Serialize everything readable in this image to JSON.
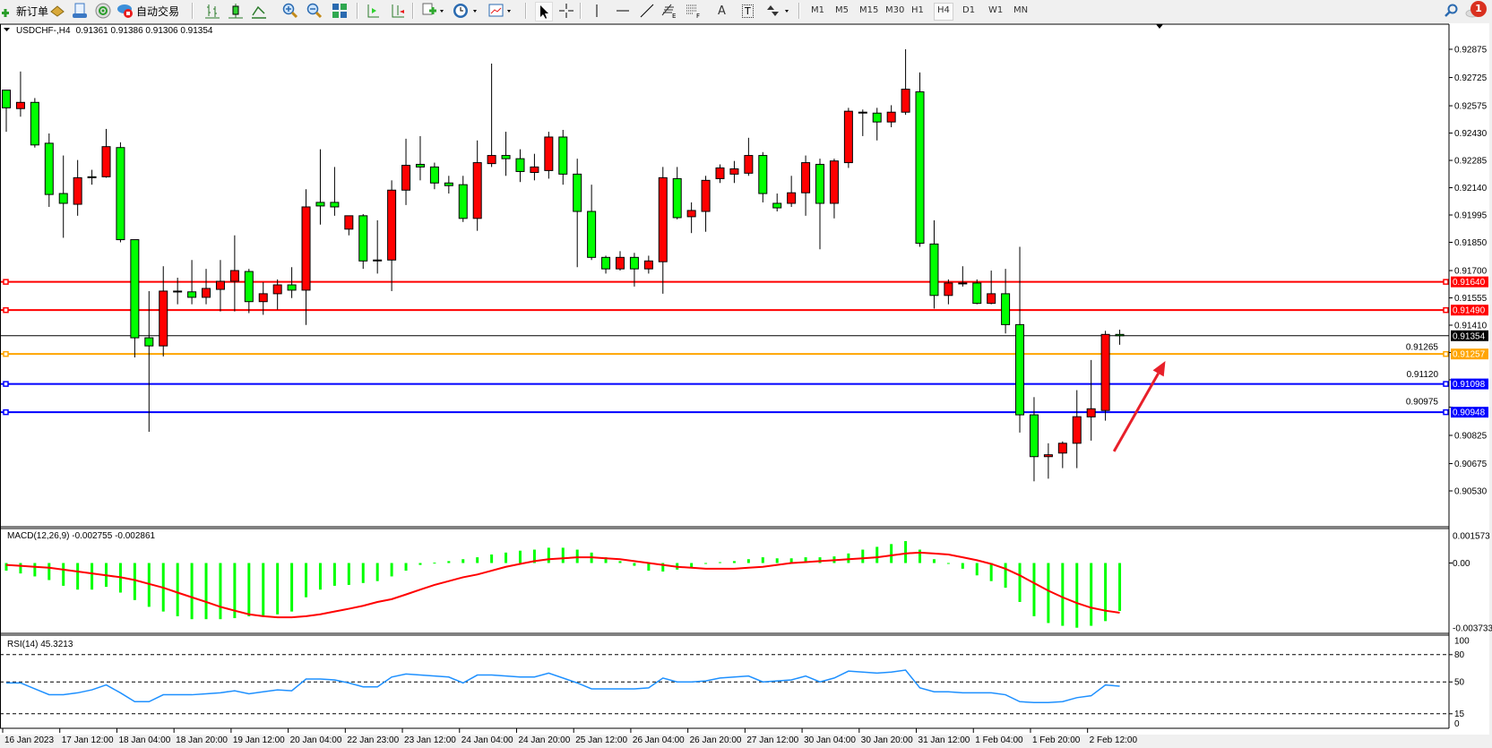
{
  "toolbar": {
    "new_order": {
      "label": "新订单",
      "icon": "new-order-icon"
    },
    "autotrading": {
      "label": "自动交易",
      "icon": "autotrading-icon"
    },
    "icons": [
      "market-watch-icon",
      "navigator-icon",
      "signals-icon",
      "bar-chart-icon",
      "candlestick-icon",
      "line-chart-icon",
      "zoom-in-icon",
      "zoom-out-icon",
      "tile-windows-icon",
      "auto-scroll-icon",
      "chart-shift-icon",
      "indicators-icon",
      "periodicity-icon",
      "templates-icon",
      "cursor-icon",
      "crosshair-icon",
      "vertical-line-icon",
      "horizontal-line-icon",
      "trendline-icon",
      "fibonacci-icon",
      "fibo-fan-icon",
      "text-icon",
      "text-label-icon",
      "arrows-icon"
    ],
    "fibo_e_letter": "E",
    "fibo_f_letter": "F",
    "text_letter": "A",
    "label_letter": "T",
    "timeframes": [
      "M1",
      "M5",
      "M15",
      "M30",
      "H1",
      "H4",
      "D1",
      "W1",
      "MN"
    ],
    "active_timeframe": "H4",
    "notification_count": "1"
  },
  "chart": {
    "symbol_header": "USDCHF-,H4",
    "ohlc_header": "0.91361 0.91386 0.91306 0.91354",
    "colors": {
      "bull": "#ff0000",
      "bear": "#00ff00",
      "wick": "#000000",
      "arrow": "#e8202a"
    },
    "price_axis": [
      "0.92875",
      "0.92725",
      "0.92575",
      "0.92430",
      "0.92285",
      "0.92140",
      "0.91995",
      "0.91850",
      "0.91700",
      "0.91555",
      "0.91410",
      "0.91265",
      "0.91120",
      "0.90975",
      "0.90825",
      "0.90675",
      "0.90530"
    ],
    "hlines": [
      {
        "price": "0.91640",
        "color": "#ff0000"
      },
      {
        "price": "0.91490",
        "color": "#ff0000"
      },
      {
        "price": "0.91354",
        "color": "#000000"
      },
      {
        "price": "0.91257",
        "color": "#ffa500"
      },
      {
        "price": "0.91098",
        "color": "#0000ff"
      },
      {
        "price": "0.90948",
        "color": "#0000ff"
      }
    ],
    "arrow": {
      "from_price": 0.9074,
      "to_price": 0.9122,
      "direction": "up"
    },
    "candles": [
      [
        0.92658,
        0.92658,
        0.92437,
        0.92564
      ],
      [
        0.9256,
        0.92757,
        0.92517,
        0.92593
      ],
      [
        0.92593,
        0.92616,
        0.92353,
        0.92367
      ],
      [
        0.92376,
        0.92428,
        0.92038,
        0.92104
      ],
      [
        0.92109,
        0.92311,
        0.91874,
        0.92057
      ],
      [
        0.92052,
        0.92287,
        0.91991,
        0.92193
      ],
      [
        0.92198,
        0.92235,
        0.92156,
        0.92193
      ],
      [
        0.92198,
        0.92452,
        0.92193,
        0.92358
      ],
      [
        0.92353,
        0.92381,
        0.9185,
        0.91864
      ],
      [
        0.91864,
        0.91864,
        0.91239,
        0.91343
      ],
      [
        0.91343,
        0.91591,
        0.90844,
        0.913
      ],
      [
        0.913,
        0.91723,
        0.91244,
        0.91591
      ],
      [
        0.91591,
        0.91662,
        0.91521,
        0.91587
      ],
      [
        0.91587,
        0.91756,
        0.91521,
        0.91558
      ],
      [
        0.91558,
        0.91709,
        0.91521,
        0.91605
      ],
      [
        0.916,
        0.91756,
        0.91483,
        0.91643
      ],
      [
        0.91643,
        0.91887,
        0.91483,
        0.917
      ],
      [
        0.91695,
        0.91709,
        0.91474,
        0.91535
      ],
      [
        0.91535,
        0.91638,
        0.91465,
        0.91577
      ],
      [
        0.91577,
        0.91653,
        0.91493,
        0.91624
      ],
      [
        0.91624,
        0.91718,
        0.91554,
        0.91596
      ],
      [
        0.91596,
        0.92132,
        0.91411,
        0.92038
      ],
      [
        0.92062,
        0.92344,
        0.91944,
        0.92043
      ],
      [
        0.92062,
        0.9225,
        0.91991,
        0.92038
      ],
      [
        0.9192,
        0.91991,
        0.91887,
        0.91991
      ],
      [
        0.91991,
        0.92,
        0.91709,
        0.91751
      ],
      [
        0.91756,
        0.91967,
        0.91684,
        0.91756
      ],
      [
        0.91756,
        0.92179,
        0.91591,
        0.92127
      ],
      [
        0.92127,
        0.924,
        0.92048,
        0.92259
      ],
      [
        0.92264,
        0.92414,
        0.92179,
        0.9225
      ],
      [
        0.9225,
        0.92273,
        0.92132,
        0.92165
      ],
      [
        0.92165,
        0.92203,
        0.92109,
        0.92151
      ],
      [
        0.92156,
        0.92203,
        0.91958,
        0.91977
      ],
      [
        0.91977,
        0.92391,
        0.91911,
        0.92273
      ],
      [
        0.92268,
        0.92799,
        0.9225,
        0.92311
      ],
      [
        0.92311,
        0.92437,
        0.92203,
        0.92294
      ],
      [
        0.92294,
        0.92344,
        0.9217,
        0.92226
      ],
      [
        0.92221,
        0.9232,
        0.92179,
        0.9225
      ],
      [
        0.92231,
        0.92437,
        0.92188,
        0.92409
      ],
      [
        0.92409,
        0.92447,
        0.92156,
        0.92212
      ],
      [
        0.92212,
        0.92294,
        0.91718,
        0.92014
      ],
      [
        0.92014,
        0.92156,
        0.91756,
        0.9177
      ],
      [
        0.9177,
        0.91779,
        0.91684,
        0.91709
      ],
      [
        0.91709,
        0.91803,
        0.917,
        0.9177
      ],
      [
        0.9177,
        0.91794,
        0.91615,
        0.91709
      ],
      [
        0.91709,
        0.91779,
        0.91684,
        0.91751
      ],
      [
        0.91747,
        0.9225,
        0.91577,
        0.92193
      ],
      [
        0.92188,
        0.9225,
        0.91972,
        0.91981
      ],
      [
        0.91986,
        0.92062,
        0.91899,
        0.92019
      ],
      [
        0.92014,
        0.92203,
        0.91906,
        0.92179
      ],
      [
        0.92188,
        0.92264,
        0.92165,
        0.92245
      ],
      [
        0.92212,
        0.92282,
        0.92165,
        0.9224
      ],
      [
        0.92217,
        0.92405,
        0.92203,
        0.92311
      ],
      [
        0.92311,
        0.92329,
        0.92062,
        0.92109
      ],
      [
        0.92057,
        0.92109,
        0.92014,
        0.92033
      ],
      [
        0.92057,
        0.92203,
        0.92038,
        0.92113
      ],
      [
        0.92113,
        0.92311,
        0.91991,
        0.92273
      ],
      [
        0.92264,
        0.92294,
        0.91813,
        0.92057
      ],
      [
        0.92057,
        0.92294,
        0.91977,
        0.92282
      ],
      [
        0.92273,
        0.92564,
        0.92245,
        0.92546
      ],
      [
        0.92541,
        0.92555,
        0.92414,
        0.92541
      ],
      [
        0.92536,
        0.92564,
        0.92391,
        0.92489
      ],
      [
        0.92489,
        0.92578,
        0.92461,
        0.92541
      ],
      [
        0.92541,
        0.92875,
        0.92527,
        0.92663
      ],
      [
        0.92649,
        0.92752,
        0.91826,
        0.91845
      ],
      [
        0.91841,
        0.91967,
        0.91498,
        0.91568
      ],
      [
        0.91568,
        0.91653,
        0.91521,
        0.91634
      ],
      [
        0.91634,
        0.91723,
        0.91615,
        0.91634
      ],
      [
        0.91634,
        0.91653,
        0.91521,
        0.91526
      ],
      [
        0.91526,
        0.917,
        0.91521,
        0.91577
      ],
      [
        0.91577,
        0.91709,
        0.91366,
        0.91413
      ],
      [
        0.91413,
        0.91826,
        0.9084,
        0.90934
      ],
      [
        0.90934,
        0.91028,
        0.90581,
        0.90712
      ],
      [
        0.90712,
        0.90783,
        0.90595,
        0.90722
      ],
      [
        0.90731,
        0.90793,
        0.90651,
        0.90783
      ],
      [
        0.90783,
        0.91065,
        0.90651,
        0.90924
      ],
      [
        0.90923,
        0.91225,
        0.90797,
        0.90966
      ],
      [
        0.90957,
        0.9138,
        0.90903,
        0.91361
      ],
      [
        0.91361,
        0.91386,
        0.91306,
        0.91354
      ]
    ],
    "time_axis": [
      "16 Jan 2023",
      "17 Jan 12:00",
      "18 Jan 04:00",
      "18 Jan 20:00",
      "19 Jan 12:00",
      "20 Jan 04:00",
      "22 Jan 23:00",
      "23 Jan 12:00",
      "24 Jan 04:00",
      "24 Jan 20:00",
      "25 Jan 12:00",
      "26 Jan 04:00",
      "26 Jan 20:00",
      "27 Jan 12:00",
      "30 Jan 04:00",
      "30 Jan 20:00",
      "31 Jan 12:00",
      "1 Feb 04:00",
      "1 Feb 20:00",
      "2 Feb 12:00"
    ]
  },
  "macd": {
    "label": "MACD(12,26,9) -0.002755 -0.002861",
    "axis": [
      "0.001573",
      "0.00",
      "-0.003733"
    ],
    "colors": {
      "histogram": "#00ff00",
      "signal": "#ff0000"
    },
    "histogram": [
      -0.00044,
      -0.0006,
      -0.00077,
      -0.00098,
      -0.00131,
      -0.00153,
      -0.00153,
      -0.00137,
      -0.0017,
      -0.00213,
      -0.00252,
      -0.00279,
      -0.00306,
      -0.00323,
      -0.00323,
      -0.00323,
      -0.00317,
      -0.00306,
      -0.00306,
      -0.00295,
      -0.00279,
      -0.00197,
      -0.00153,
      -0.00131,
      -0.00126,
      -0.00115,
      -0.00104,
      -0.00077,
      -0.00044,
      -0.00011,
      2e-05,
      0.00011,
      0.00022,
      0.00033,
      0.00049,
      0.0006,
      0.00071,
      0.00077,
      0.00088,
      0.00088,
      0.00077,
      0.0006,
      0.00033,
      0.00011,
      -0.00016,
      -0.00044,
      -0.00049,
      -0.00038,
      -0.00027,
      -5e-05,
      5e-05,
      0.00011,
      0.00022,
      0.00033,
      0.00027,
      0.00027,
      0.00033,
      0.00033,
      0.00038,
      0.00055,
      0.00077,
      0.00093,
      0.00109,
      0.00126,
      0.00077,
      0.00022,
      -5e-05,
      -0.00033,
      -0.00071,
      -0.00104,
      -0.00142,
      -0.00224,
      -0.00306,
      -0.00345,
      -0.00361,
      -0.00372,
      -0.00361,
      -0.00334,
      -0.002755
    ],
    "signal": [
      -0.00011,
      -0.00016,
      -0.00022,
      -0.00027,
      -0.00038,
      -0.00049,
      -0.0006,
      -0.00071,
      -0.00082,
      -0.00098,
      -0.0012,
      -0.00142,
      -0.0017,
      -0.00197,
      -0.00224,
      -0.00252,
      -0.00274,
      -0.00295,
      -0.00306,
      -0.00312,
      -0.00312,
      -0.00306,
      -0.00295,
      -0.00279,
      -0.00263,
      -0.00246,
      -0.00224,
      -0.00208,
      -0.00181,
      -0.00153,
      -0.00126,
      -0.00104,
      -0.00082,
      -0.00066,
      -0.00044,
      -0.00022,
      -5e-05,
      0.00011,
      0.00022,
      0.00027,
      0.00033,
      0.00033,
      0.00027,
      0.00022,
      0.00011,
      0.0,
      -0.00011,
      -0.00022,
      -0.00027,
      -0.00033,
      -0.00033,
      -0.00033,
      -0.00027,
      -0.00022,
      -0.00011,
      0.0,
      5e-05,
      0.00011,
      0.00016,
      0.00022,
      0.00027,
      0.00033,
      0.00044,
      0.00055,
      0.0006,
      0.00055,
      0.00049,
      0.00033,
      0.00016,
      -5e-05,
      -0.00033,
      -0.00071,
      -0.00115,
      -0.00159,
      -0.00197,
      -0.0023,
      -0.00257,
      -0.00274,
      -0.002861
    ]
  },
  "rsi": {
    "label": "RSI(14) 45.3213",
    "axis": [
      "100",
      "80",
      "50",
      "15",
      "0"
    ],
    "levels": [
      80,
      50,
      15
    ],
    "color": "#1e90ff",
    "values": [
      48.9,
      48.9,
      42.4,
      36,
      36,
      38,
      41.3,
      46.7,
      38,
      28.3,
      28.3,
      35.9,
      35.9,
      35.9,
      37,
      38.1,
      40.3,
      37,
      39.2,
      41.3,
      40.3,
      53.2,
      53.2,
      52.2,
      48.9,
      44.6,
      44.6,
      55.4,
      58.7,
      57.6,
      56.5,
      55.4,
      48.9,
      57.6,
      57.6,
      56.5,
      55.4,
      55.4,
      59.7,
      54.3,
      48.9,
      42.4,
      42.4,
      42.4,
      42.4,
      43.5,
      54.3,
      50,
      50,
      51.1,
      54.3,
      55.4,
      56.5,
      50,
      51.1,
      52.2,
      56.5,
      50,
      54.3,
      61.9,
      60.8,
      59.7,
      60.8,
      63,
      43.5,
      39.2,
      39.2,
      38.1,
      38.1,
      38.1,
      35.9,
      28.3,
      27.3,
      27.3,
      28.3,
      32.7,
      34.8,
      46.7,
      45.32
    ]
  }
}
